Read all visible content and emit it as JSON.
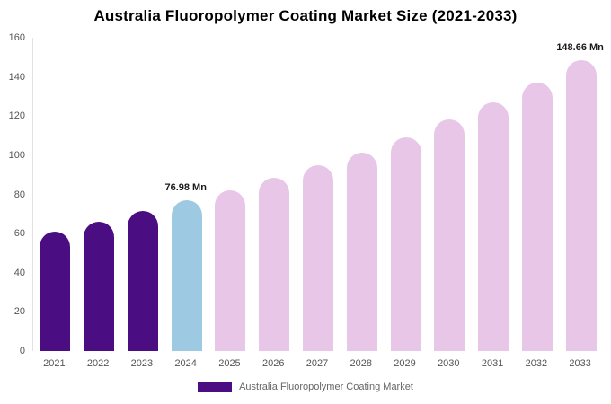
{
  "chart": {
    "title": "Australia Fluoropolymer Coating Market Size (2021-2033)",
    "legend": {
      "label": "Australia Fluoropolymer Coating Market",
      "swatch_color": "#4b0d82"
    }
  },
  "chart_data": {
    "type": "bar",
    "title": "Australia Fluoropolymer Coating Market Size (2021-2033)",
    "xlabel": "",
    "ylabel": "",
    "categories": [
      "2021",
      "2022",
      "2023",
      "2024",
      "2025",
      "2026",
      "2027",
      "2028",
      "2029",
      "2030",
      "2031",
      "2032",
      "2033"
    ],
    "values": [
      61,
      66,
      71.5,
      76.98,
      82,
      88.5,
      94.9,
      101.5,
      109.3,
      118.3,
      127,
      137,
      148.66
    ],
    "bar_colors": [
      "#4b0d82",
      "#4b0d82",
      "#4b0d82",
      "#9ec9e2",
      "#e7c6e7",
      "#e7c6e7",
      "#e7c6e7",
      "#e7c6e7",
      "#e7c6e7",
      "#e7c6e7",
      "#e7c6e7",
      "#e7c6e7",
      "#e7c6e7"
    ],
    "annotations": [
      {
        "category": "2024",
        "label": "76.98 Mn"
      },
      {
        "category": "2033",
        "label": "148.66 Mn"
      }
    ],
    "ylim": [
      0,
      160
    ],
    "y_ticks": [
      0,
      20,
      40,
      60,
      80,
      100,
      120,
      140,
      160
    ],
    "grid": false,
    "legend_position": "bottom",
    "units": "Mn"
  }
}
